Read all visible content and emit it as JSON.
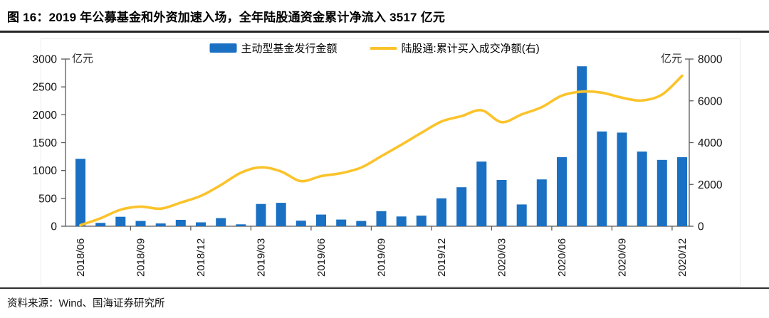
{
  "header": {
    "title": "图 16：2019 年公募基金和外资加速入场，全年陆股通资金累计净流入 3517 亿元"
  },
  "footer": {
    "source": "资料来源：Wind、国海证券研究所"
  },
  "chart_data": {
    "type": "bar",
    "subtype": "bar+line dual axis",
    "categories": [
      "2018/06",
      "2018/07",
      "2018/08",
      "2018/09",
      "2018/10",
      "2018/11",
      "2018/12",
      "2019/01",
      "2019/02",
      "2019/03",
      "2019/04",
      "2019/05",
      "2019/06",
      "2019/07",
      "2019/08",
      "2019/09",
      "2019/10",
      "2019/11",
      "2019/12",
      "2020/01",
      "2020/02",
      "2020/03",
      "2020/04",
      "2020/05",
      "2020/06",
      "2020/07",
      "2020/08",
      "2020/09",
      "2020/10",
      "2020/11",
      "2020/12"
    ],
    "x_tick_labels": [
      "2018/06",
      "2018/09",
      "2018/12",
      "2019/03",
      "2019/06",
      "2019/09",
      "2019/12",
      "2020/03",
      "2020/06",
      "2020/09",
      "2020/12"
    ],
    "series": [
      {
        "name": "主动型基金发行金额",
        "type": "bar",
        "axis": "left",
        "color": "#1A70C2",
        "values": [
          1210,
          60,
          170,
          95,
          50,
          115,
          70,
          145,
          35,
          400,
          420,
          100,
          210,
          120,
          95,
          270,
          175,
          190,
          500,
          700,
          1160,
          830,
          390,
          840,
          1240,
          2870,
          1700,
          1680,
          1340,
          1190,
          1240
        ]
      },
      {
        "name": "陆股通:累计买入成交净额(右)",
        "type": "line",
        "axis": "right",
        "color": "#FBC32B",
        "values": [
          50,
          380,
          790,
          940,
          840,
          1130,
          1450,
          1970,
          2560,
          2820,
          2620,
          2160,
          2400,
          2540,
          2810,
          3350,
          3900,
          4470,
          5010,
          5270,
          5550,
          4980,
          5350,
          5700,
          6250,
          6440,
          6390,
          6150,
          6020,
          6300,
          7200
        ]
      }
    ],
    "left_axis": {
      "title": "亿元",
      "min": 0,
      "max": 3000,
      "step": 500
    },
    "right_axis": {
      "title": "亿元",
      "min": 0,
      "max": 8000,
      "step": 2000
    },
    "legend_position": "top",
    "grid": "off",
    "axis_color": "#595959"
  }
}
